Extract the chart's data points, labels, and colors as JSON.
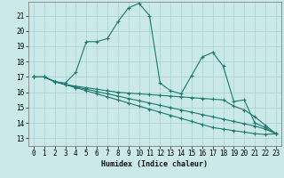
{
  "xlabel": "Humidex (Indice chaleur)",
  "xlim": [
    -0.5,
    23.5
  ],
  "ylim": [
    12.5,
    21.9
  ],
  "xticks": [
    0,
    1,
    2,
    3,
    4,
    5,
    6,
    7,
    8,
    9,
    10,
    11,
    12,
    13,
    14,
    15,
    16,
    17,
    18,
    19,
    20,
    21,
    22,
    23
  ],
  "yticks": [
    13,
    14,
    15,
    16,
    17,
    18,
    19,
    20,
    21
  ],
  "background_color": "#cce9e9",
  "grid_color": "#aed4d4",
  "line_color": "#1a7a6e",
  "series": [
    {
      "x": [
        0,
        1,
        2,
        3,
        4,
        5,
        6,
        7,
        8,
        9,
        10,
        11,
        12,
        13,
        14,
        15,
        16,
        17,
        18,
        19,
        20,
        21,
        22,
        23
      ],
      "y": [
        17,
        17,
        16.7,
        16.6,
        17.3,
        19.3,
        19.3,
        19.5,
        20.6,
        21.5,
        21.8,
        21.0,
        16.6,
        16.1,
        15.9,
        17.1,
        18.3,
        18.6,
        17.7,
        15.4,
        15.5,
        14.0,
        13.7,
        13.3
      ]
    },
    {
      "x": [
        0,
        1,
        2,
        3,
        4,
        5,
        6,
        7,
        8,
        9,
        10,
        11,
        12,
        13,
        14,
        15,
        16,
        17,
        18,
        19,
        20,
        21,
        22,
        23
      ],
      "y": [
        17,
        17,
        16.7,
        16.5,
        16.4,
        16.3,
        16.2,
        16.1,
        16.0,
        15.95,
        15.9,
        15.85,
        15.8,
        15.75,
        15.7,
        15.65,
        15.6,
        15.55,
        15.5,
        15.1,
        14.85,
        14.4,
        13.85,
        13.3
      ]
    },
    {
      "x": [
        0,
        1,
        2,
        3,
        4,
        5,
        6,
        7,
        8,
        9,
        10,
        11,
        12,
        13,
        14,
        15,
        16,
        17,
        18,
        19,
        20,
        21,
        22,
        23
      ],
      "y": [
        17,
        17,
        16.7,
        16.5,
        16.35,
        16.2,
        16.05,
        15.9,
        15.75,
        15.6,
        15.45,
        15.3,
        15.15,
        15.0,
        14.85,
        14.7,
        14.55,
        14.4,
        14.25,
        14.1,
        13.95,
        13.8,
        13.6,
        13.3
      ]
    },
    {
      "x": [
        0,
        1,
        2,
        3,
        4,
        5,
        6,
        7,
        8,
        9,
        10,
        11,
        12,
        13,
        14,
        15,
        16,
        17,
        18,
        19,
        20,
        21,
        22,
        23
      ],
      "y": [
        17,
        17,
        16.7,
        16.5,
        16.3,
        16.1,
        15.9,
        15.7,
        15.5,
        15.3,
        15.1,
        14.9,
        14.7,
        14.5,
        14.3,
        14.1,
        13.9,
        13.7,
        13.6,
        13.5,
        13.4,
        13.3,
        13.25,
        13.3
      ]
    }
  ]
}
